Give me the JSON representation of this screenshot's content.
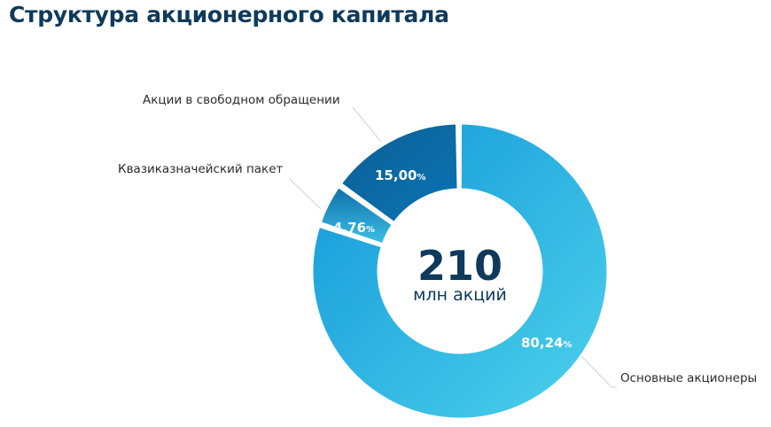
{
  "chart_data": {
    "type": "pie",
    "title": "Структура акционерного капитала",
    "center": {
      "value": "210",
      "unit": "млн акций"
    },
    "slices": [
      {
        "name": "Основные акционеры",
        "value": 80.24,
        "value_text": "80,24",
        "color": "#22a8e0"
      },
      {
        "name": "Квазиказначейский пакет",
        "value": 4.76,
        "value_text": "4,76",
        "color": "#1e8fc8"
      },
      {
        "name": "Акции в свободном обращении",
        "value": 15.0,
        "value_text": "15,00",
        "color": "#0b6aa3"
      }
    ],
    "percent_sign": "%"
  }
}
